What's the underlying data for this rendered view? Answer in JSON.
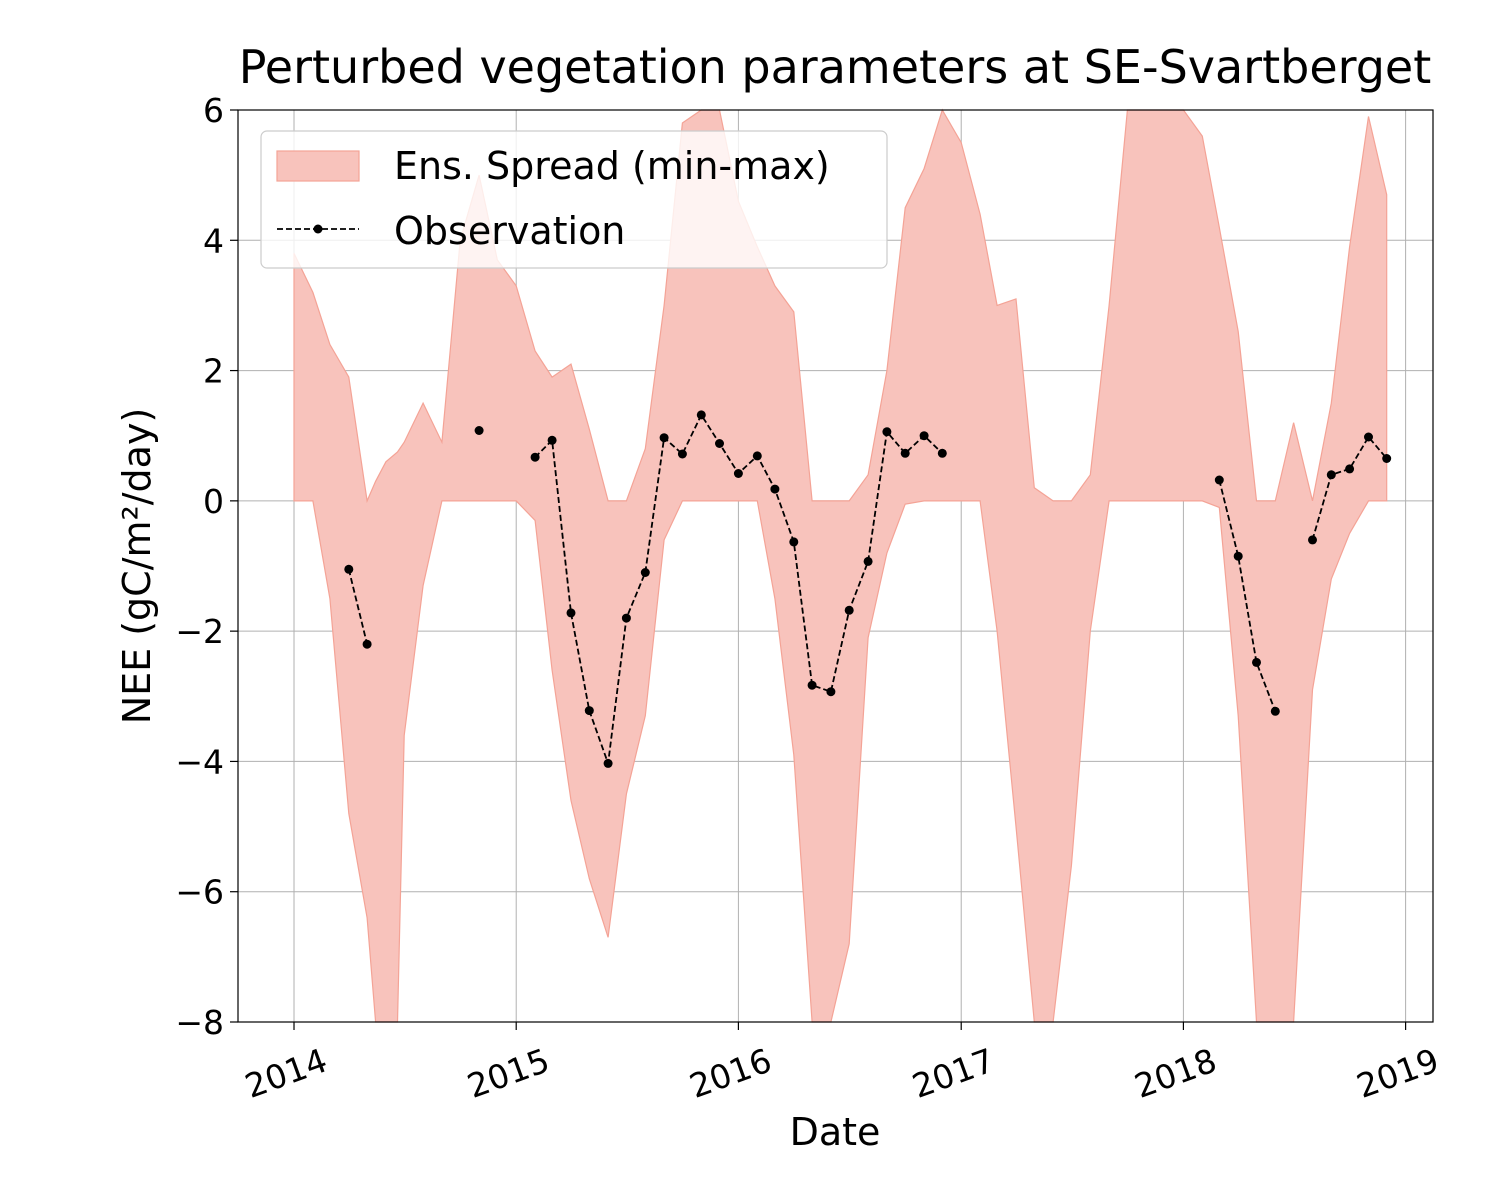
{
  "chart_data": {
    "type": "area",
    "title": "Perturbed vegetation parameters at SE-Svartberget",
    "xlabel": "Date",
    "ylabel": "NEE  (gC/m²/day)",
    "x_ticks": [
      "2014",
      "2015",
      "2016",
      "2017",
      "2018",
      "2019"
    ],
    "y_ticks": [
      "−8",
      "−6",
      "−4",
      "−2",
      "0",
      "2",
      "4",
      "6"
    ],
    "xlim": [
      "2013-10-01",
      "2019-02-15"
    ],
    "ylim": [
      -8,
      6
    ],
    "grid": true,
    "legend_position": "top-left",
    "colors": {
      "spread": "#f8c3bc",
      "spread_edge": "#f4a396",
      "observation": "#000000"
    },
    "series": [
      {
        "name": "Ens. Spread (min-max)",
        "kind": "band",
        "points": [
          {
            "x": "2014-01-01",
            "lo": 0.0,
            "hi": 3.8
          },
          {
            "x": "2014-02-01",
            "lo": 0.0,
            "hi": 3.2
          },
          {
            "x": "2014-03-01",
            "lo": -1.5,
            "hi": 2.4
          },
          {
            "x": "2014-04-01",
            "lo": -4.8,
            "hi": 1.9
          },
          {
            "x": "2014-05-01",
            "lo": -6.4,
            "hi": 0.0
          },
          {
            "x": "2014-05-15",
            "lo": -8.0,
            "hi": 0.3
          },
          {
            "x": "2014-06-01",
            "lo": -8.0,
            "hi": 0.6
          },
          {
            "x": "2014-06-20",
            "lo": -8.0,
            "hi": 0.75
          },
          {
            "x": "2014-07-01",
            "lo": -3.6,
            "hi": 0.9
          },
          {
            "x": "2014-08-01",
            "lo": -1.3,
            "hi": 1.5
          },
          {
            "x": "2014-09-01",
            "lo": 0.0,
            "hi": 0.9
          },
          {
            "x": "2014-10-01",
            "lo": 0.0,
            "hi": 4.0
          },
          {
            "x": "2014-11-01",
            "lo": 0.0,
            "hi": 5.0
          },
          {
            "x": "2014-12-01",
            "lo": 0.0,
            "hi": 3.7
          },
          {
            "x": "2015-01-01",
            "lo": 0.0,
            "hi": 3.3
          },
          {
            "x": "2015-02-01",
            "lo": -0.3,
            "hi": 2.3
          },
          {
            "x": "2015-03-01",
            "lo": -2.6,
            "hi": 1.9
          },
          {
            "x": "2015-04-01",
            "lo": -4.6,
            "hi": 2.1
          },
          {
            "x": "2015-05-01",
            "lo": -5.8,
            "hi": 1.1
          },
          {
            "x": "2015-06-01",
            "lo": -6.7,
            "hi": 0.0
          },
          {
            "x": "2015-07-01",
            "lo": -4.5,
            "hi": 0.0
          },
          {
            "x": "2015-08-01",
            "lo": -3.3,
            "hi": 0.8
          },
          {
            "x": "2015-09-01",
            "lo": -0.6,
            "hi": 3.0
          },
          {
            "x": "2015-10-01",
            "lo": 0.0,
            "hi": 5.8
          },
          {
            "x": "2015-11-01",
            "lo": 0.0,
            "hi": 6.0
          },
          {
            "x": "2015-12-01",
            "lo": 0.0,
            "hi": 6.0
          },
          {
            "x": "2016-01-01",
            "lo": 0.0,
            "hi": 4.6
          },
          {
            "x": "2016-02-01",
            "lo": 0.0,
            "hi": 3.9
          },
          {
            "x": "2016-03-01",
            "lo": -1.5,
            "hi": 3.3
          },
          {
            "x": "2016-04-01",
            "lo": -3.9,
            "hi": 2.9
          },
          {
            "x": "2016-05-01",
            "lo": -8.0,
            "hi": 0.0
          },
          {
            "x": "2016-06-01",
            "lo": -8.0,
            "hi": 0.0
          },
          {
            "x": "2016-07-01",
            "lo": -6.8,
            "hi": 0.0
          },
          {
            "x": "2016-08-01",
            "lo": -2.1,
            "hi": 0.4
          },
          {
            "x": "2016-09-01",
            "lo": -0.8,
            "hi": 2.0
          },
          {
            "x": "2016-10-01",
            "lo": -0.05,
            "hi": 4.5
          },
          {
            "x": "2016-11-01",
            "lo": 0.0,
            "hi": 5.1
          },
          {
            "x": "2016-12-01",
            "lo": 0.0,
            "hi": 6.0
          },
          {
            "x": "2017-01-01",
            "lo": 0.0,
            "hi": 5.5
          },
          {
            "x": "2017-02-01",
            "lo": 0.0,
            "hi": 4.4
          },
          {
            "x": "2017-03-01",
            "lo": -2.0,
            "hi": 3.0
          },
          {
            "x": "2017-04-01",
            "lo": -5.0,
            "hi": 3.1
          },
          {
            "x": "2017-05-01",
            "lo": -8.0,
            "hi": 0.2
          },
          {
            "x": "2017-06-01",
            "lo": -8.0,
            "hi": 0.0
          },
          {
            "x": "2017-07-01",
            "lo": -5.6,
            "hi": 0.0
          },
          {
            "x": "2017-08-01",
            "lo": -2.0,
            "hi": 0.4
          },
          {
            "x": "2017-09-01",
            "lo": 0.0,
            "hi": 3.0
          },
          {
            "x": "2017-10-01",
            "lo": 0.0,
            "hi": 6.0
          },
          {
            "x": "2017-11-01",
            "lo": 0.0,
            "hi": 6.0
          },
          {
            "x": "2017-12-01",
            "lo": 0.0,
            "hi": 6.0
          },
          {
            "x": "2018-01-01",
            "lo": 0.0,
            "hi": 6.0
          },
          {
            "x": "2018-02-01",
            "lo": 0.0,
            "hi": 5.6
          },
          {
            "x": "2018-03-01",
            "lo": -0.1,
            "hi": 4.2
          },
          {
            "x": "2018-04-01",
            "lo": -3.3,
            "hi": 2.6
          },
          {
            "x": "2018-05-01",
            "lo": -8.0,
            "hi": 0.0
          },
          {
            "x": "2018-06-01",
            "lo": -8.0,
            "hi": 0.0
          },
          {
            "x": "2018-07-01",
            "lo": -8.0,
            "hi": 1.2
          },
          {
            "x": "2018-08-01",
            "lo": -2.9,
            "hi": 0.0
          },
          {
            "x": "2018-09-01",
            "lo": -1.2,
            "hi": 1.5
          },
          {
            "x": "2018-10-01",
            "lo": -0.5,
            "hi": 3.9
          },
          {
            "x": "2018-11-01",
            "lo": 0.0,
            "hi": 5.9
          },
          {
            "x": "2018-12-01",
            "lo": 0.0,
            "hi": 4.7
          }
        ]
      },
      {
        "name": "Observation",
        "kind": "line",
        "segments": [
          [
            {
              "x": "2014-04-01",
              "y": -1.05
            },
            {
              "x": "2014-05-01",
              "y": -2.2
            }
          ],
          [
            {
              "x": "2014-11-01",
              "y": 1.08
            }
          ],
          [
            {
              "x": "2015-02-01",
              "y": 0.67
            },
            {
              "x": "2015-03-01",
              "y": 0.93
            },
            {
              "x": "2015-04-01",
              "y": -1.72
            },
            {
              "x": "2015-05-01",
              "y": -3.22
            },
            {
              "x": "2015-06-01",
              "y": -4.03
            },
            {
              "x": "2015-07-01",
              "y": -1.8
            },
            {
              "x": "2015-08-01",
              "y": -1.1
            },
            {
              "x": "2015-09-01",
              "y": 0.97
            },
            {
              "x": "2015-10-01",
              "y": 0.72
            },
            {
              "x": "2015-11-01",
              "y": 1.32
            },
            {
              "x": "2015-12-01",
              "y": 0.88
            },
            {
              "x": "2016-01-01",
              "y": 0.42
            },
            {
              "x": "2016-02-01",
              "y": 0.69
            },
            {
              "x": "2016-03-01",
              "y": 0.18
            },
            {
              "x": "2016-04-01",
              "y": -0.63
            },
            {
              "x": "2016-05-01",
              "y": -2.83
            },
            {
              "x": "2016-06-01",
              "y": -2.93
            },
            {
              "x": "2016-07-01",
              "y": -1.68
            },
            {
              "x": "2016-08-01",
              "y": -0.93
            },
            {
              "x": "2016-09-01",
              "y": 1.06
            },
            {
              "x": "2016-10-01",
              "y": 0.73
            },
            {
              "x": "2016-11-01",
              "y": 1.0
            },
            {
              "x": "2016-12-01",
              "y": 0.73
            }
          ],
          [
            {
              "x": "2018-03-01",
              "y": 0.32
            },
            {
              "x": "2018-04-01",
              "y": -0.85
            },
            {
              "x": "2018-05-01",
              "y": -2.48
            },
            {
              "x": "2018-06-01",
              "y": -3.23
            }
          ],
          [
            {
              "x": "2018-08-01",
              "y": -0.6
            },
            {
              "x": "2018-09-01",
              "y": 0.4
            },
            {
              "x": "2018-10-01",
              "y": 0.49
            },
            {
              "x": "2018-11-01",
              "y": 0.98
            },
            {
              "x": "2018-12-01",
              "y": 0.65
            }
          ]
        ]
      }
    ]
  }
}
